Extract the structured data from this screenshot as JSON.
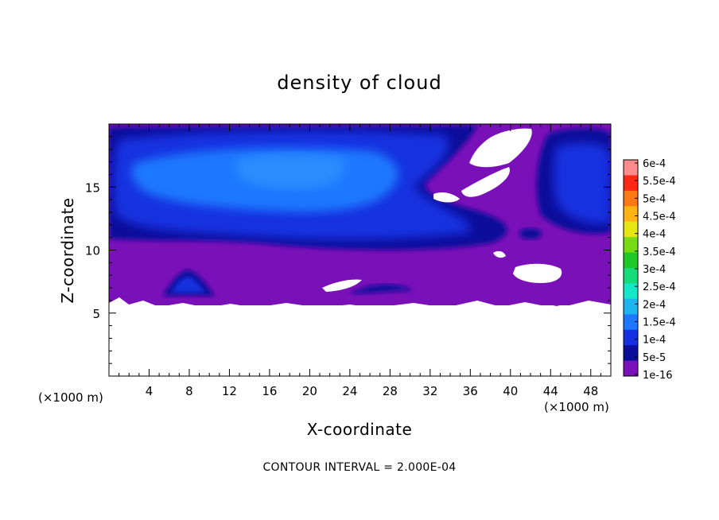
{
  "chart_data": {
    "type": "heatmap",
    "title": "density of cloud",
    "xlabel": "X-coordinate",
    "ylabel": "Z-coordinate",
    "x_unit_left": "(×1000 m)",
    "x_unit_right": "(×1000 m)",
    "xlim": [
      0,
      50
    ],
    "ylim": [
      0,
      20
    ],
    "x_ticks": [
      4,
      8,
      12,
      16,
      20,
      24,
      28,
      32,
      36,
      40,
      44,
      48
    ],
    "y_ticks": [
      5,
      10,
      15
    ],
    "colorbar": {
      "labels": [
        "1e-16",
        "5e-5",
        "1e-4",
        "1.5e-4",
        "2e-4",
        "2.5e-4",
        "3e-4",
        "3.5e-4",
        "4e-4",
        "4.5e-4",
        "5e-4",
        "5.5e-4",
        "6e-4"
      ],
      "colors": [
        "#7a10b8",
        "#0d0d9c",
        "#1430e0",
        "#1e78ff",
        "#1eb4f0",
        "#14e6c8",
        "#14dc78",
        "#1ec828",
        "#78dc14",
        "#e6e614",
        "#ffb414",
        "#ff7814",
        "#ff2814",
        "#ff8c8c"
      ]
    },
    "contour_interval_text": "CONTOUR INTERVAL = 2.000E-04",
    "data_description_levels": {
      "background_level": "1e-16",
      "main_cloud_band_z": [
        10,
        19.5
      ],
      "core_level_max": "1e-4"
    }
  }
}
